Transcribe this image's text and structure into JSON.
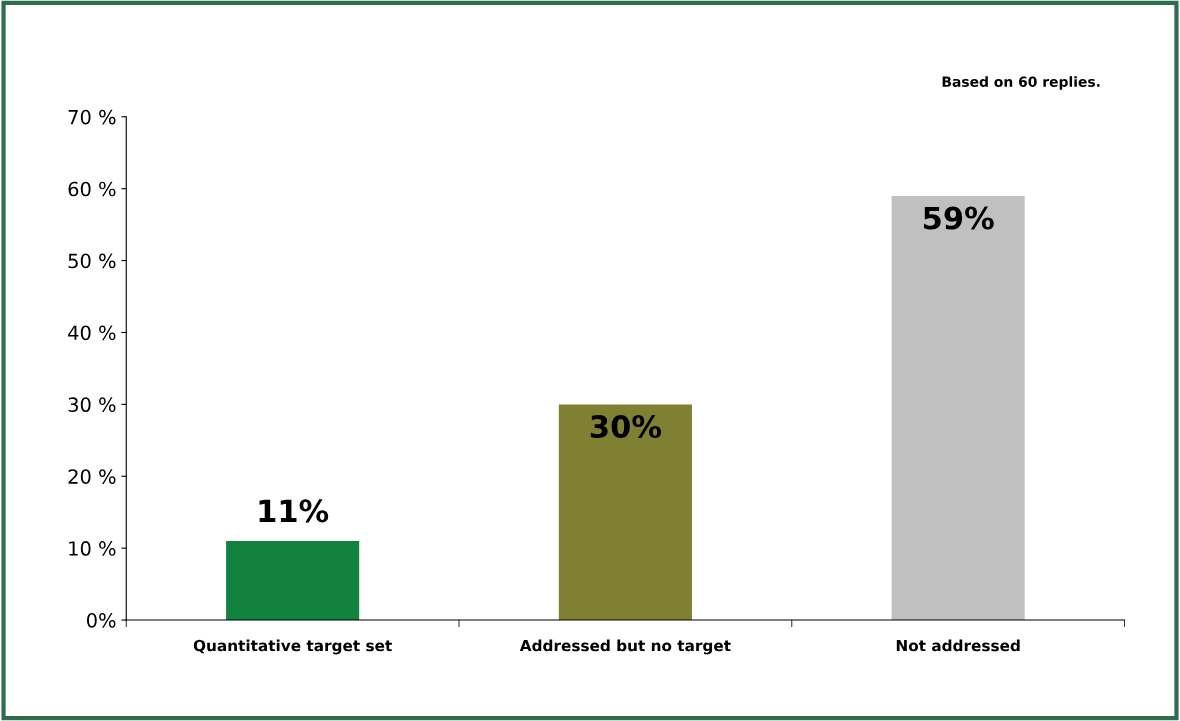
{
  "chart_data": {
    "type": "bar",
    "categories": [
      "Quantitative target set",
      "Addressed but no target",
      "Not addressed"
    ],
    "values": [
      11,
      30,
      59
    ],
    "colors": [
      "#11833f",
      "#808033",
      "#c0c0c0"
    ],
    "value_labels": [
      "11%",
      "30%",
      "59%"
    ],
    "ylim": [
      0,
      70
    ],
    "yticks": [
      {
        "value": 0,
        "label": "0%"
      },
      {
        "value": 10,
        "label": "10 %"
      },
      {
        "value": 20,
        "label": "20 %"
      },
      {
        "value": 30,
        "label": "30 %"
      },
      {
        "value": 40,
        "label": "40 %"
      },
      {
        "value": 50,
        "label": "50 %"
      },
      {
        "value": 60,
        "label": "60 %"
      },
      {
        "value": 70,
        "label": "70 %"
      }
    ],
    "annotations": [
      "Based on 60 replies."
    ],
    "grid": false,
    "legend": false
  }
}
